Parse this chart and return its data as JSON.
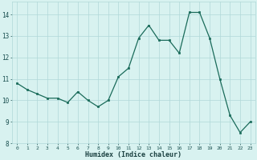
{
  "x": [
    0,
    1,
    2,
    3,
    4,
    5,
    6,
    7,
    8,
    9,
    10,
    11,
    12,
    13,
    14,
    15,
    16,
    17,
    18,
    19,
    20,
    21,
    22,
    23
  ],
  "y": [
    10.8,
    10.5,
    10.3,
    10.1,
    10.1,
    9.9,
    10.4,
    10.0,
    9.7,
    10.0,
    11.1,
    11.5,
    12.9,
    13.5,
    12.8,
    12.8,
    12.2,
    14.1,
    14.1,
    12.9,
    11.0,
    9.3,
    8.5,
    9.0
  ],
  "xlabel": "Humidex (Indice chaleur)",
  "xlim": [
    -0.5,
    23.5
  ],
  "ylim": [
    8,
    14.6
  ],
  "yticks": [
    8,
    9,
    10,
    11,
    12,
    13,
    14
  ],
  "xticks": [
    0,
    1,
    2,
    3,
    4,
    5,
    6,
    7,
    8,
    9,
    10,
    11,
    12,
    13,
    14,
    15,
    16,
    17,
    18,
    19,
    20,
    21,
    22,
    23
  ],
  "line_color": "#1a6b5a",
  "marker_color": "#1a6b5a",
  "bg_color": "#d8f2f0",
  "grid_color": "#b0d8d8",
  "tick_color": "#1a5050",
  "label_color": "#1a4040"
}
